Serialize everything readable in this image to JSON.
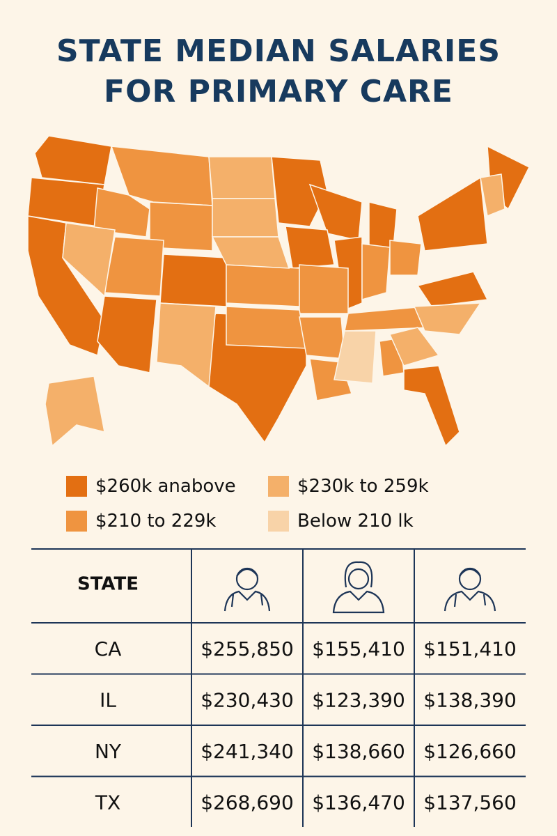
{
  "header": {
    "title": "STATE MEDIAN SALARIES FOR PRIMARY CARE"
  },
  "legend": {
    "items": [
      {
        "label": "$260k anabove",
        "color": "#e36f12"
      },
      {
        "label": "$230k to 259k",
        "color": "#f4b06a"
      },
      {
        "label": "$210 to 229k",
        "color": "#ef9440"
      },
      {
        "label": "Below 210 lk",
        "color": "#f8d3a8"
      }
    ]
  },
  "table": {
    "header": [
      "STATE"
    ],
    "rows": [
      [
        "CA",
        "$255,850",
        "$155,410",
        "$151,410"
      ],
      [
        "IL",
        "$230,430",
        "$123,390",
        "$138,390"
      ],
      [
        "NY",
        "$241,340",
        "$138,660",
        "$126,660"
      ],
      [
        "TX",
        "$268,690",
        "$136,470",
        "$137,560"
      ]
    ]
  }
}
